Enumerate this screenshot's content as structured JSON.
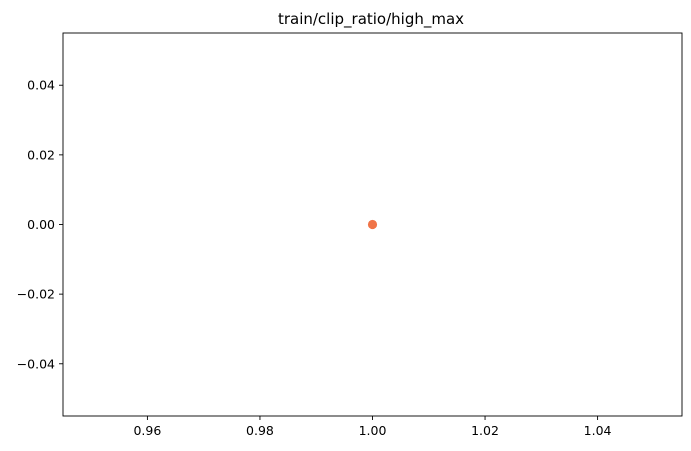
{
  "chart_data": {
    "type": "scatter",
    "title": "train/clip_ratio/high_max",
    "xlabel": "",
    "ylabel": "",
    "xlim": [
      0.945,
      1.055
    ],
    "ylim": [
      -0.055,
      0.055
    ],
    "x_ticks": [
      0.96,
      0.98,
      1.0,
      1.02,
      1.04
    ],
    "x_tick_labels": [
      "0.96",
      "0.98",
      "1.00",
      "1.02",
      "1.04"
    ],
    "y_ticks": [
      0.04,
      0.02,
      0.0,
      -0.02,
      -0.04
    ],
    "y_tick_labels": [
      "0.04",
      "0.02",
      "0.00",
      "−0.02",
      "−0.04"
    ],
    "grid": false,
    "series": [
      {
        "color": "#f07448",
        "points": [
          {
            "x": 1.0,
            "y": 0.0
          }
        ]
      }
    ]
  }
}
